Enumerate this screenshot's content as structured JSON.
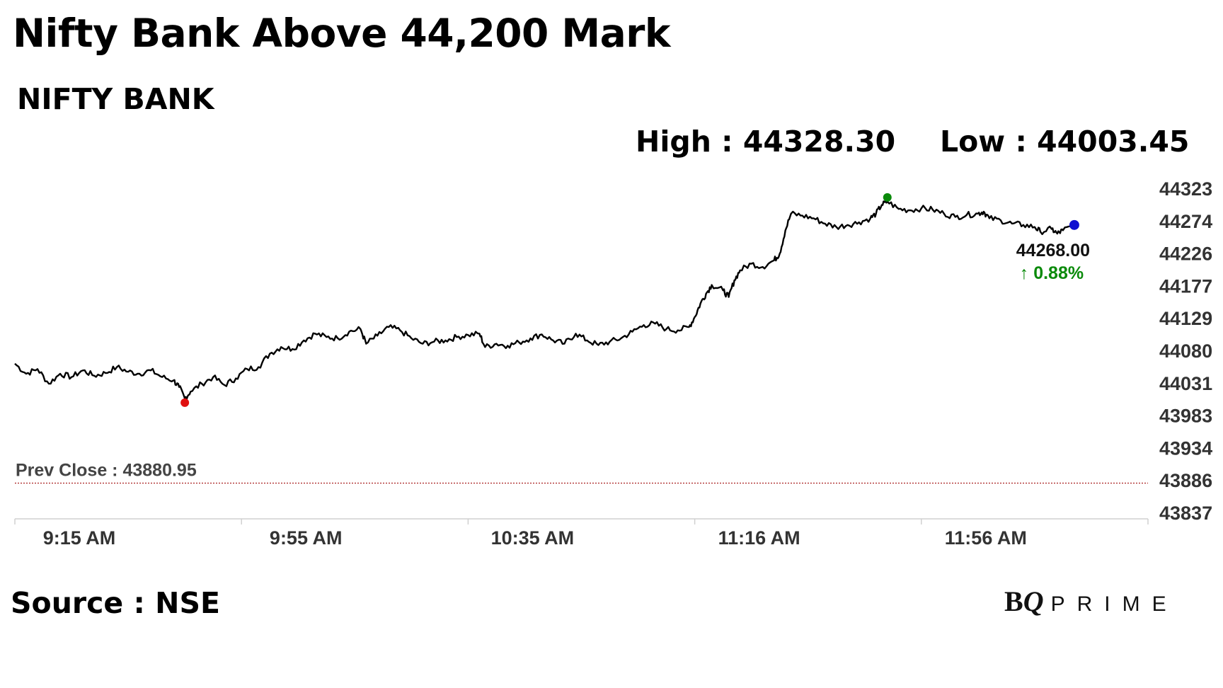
{
  "chart_data": {
    "type": "line",
    "title": "Nifty Bank Above 44,200 Mark",
    "subtitle": "NIFTY BANK",
    "high_label": "High : 44328.30",
    "low_label": "Low : 44003.45",
    "high": 44328.3,
    "low": 44003.45,
    "prev_close": 43880.95,
    "prev_close_label": "Prev Close : 43880.95",
    "last_value": 44268.0,
    "last_value_label": "44268.00",
    "change_label": "↑ 0.88%",
    "source": "Source : NSE",
    "y_ticks": [
      44323,
      44274,
      44226,
      44177,
      44129,
      44080,
      44031,
      43983,
      43934,
      43886,
      43837
    ],
    "ylim": [
      43837,
      44323
    ],
    "x_ticks": [
      "9:15 AM",
      "9:55 AM",
      "10:35 AM",
      "11:16 AM",
      "11:56 AM"
    ],
    "xlim_minutes": [
      555,
      755
    ],
    "x_tick_minutes": [
      555,
      595,
      635,
      676,
      716
    ],
    "series": [
      {
        "points": [
          [
            555,
            44060
          ],
          [
            557,
            44045
          ],
          [
            559,
            44052
          ],
          [
            561,
            44030
          ],
          [
            563,
            44045
          ],
          [
            565,
            44040
          ],
          [
            567,
            44050
          ],
          [
            569,
            44042
          ],
          [
            571,
            44046
          ],
          [
            573,
            44055
          ],
          [
            575,
            44048
          ],
          [
            577,
            44045
          ],
          [
            579,
            44050
          ],
          [
            581,
            44040
          ],
          [
            583,
            44035
          ],
          [
            584,
            44025
          ],
          [
            585,
            44008
          ],
          [
            586,
            44018
          ],
          [
            588,
            44030
          ],
          [
            590,
            44040
          ],
          [
            592,
            44028
          ],
          [
            594,
            44038
          ],
          [
            596,
            44052
          ],
          [
            598,
            44055
          ],
          [
            600,
            44075
          ],
          [
            602,
            44085
          ],
          [
            604,
            44082
          ],
          [
            606,
            44095
          ],
          [
            608,
            44105
          ],
          [
            610,
            44100
          ],
          [
            612,
            44098
          ],
          [
            614,
            44108
          ],
          [
            616,
            44112
          ],
          [
            617,
            44090
          ],
          [
            619,
            44102
          ],
          [
            621,
            44115
          ],
          [
            623,
            44110
          ],
          [
            625,
            44098
          ],
          [
            627,
            44090
          ],
          [
            629,
            44093
          ],
          [
            631,
            44095
          ],
          [
            633,
            44100
          ],
          [
            635,
            44103
          ],
          [
            637,
            44105
          ],
          [
            638,
            44085
          ],
          [
            640,
            44090
          ],
          [
            642,
            44087
          ],
          [
            644,
            44092
          ],
          [
            646,
            44098
          ],
          [
            648,
            44104
          ],
          [
            650,
            44095
          ],
          [
            652,
            44090
          ],
          [
            654,
            44105
          ],
          [
            656,
            44095
          ],
          [
            658,
            44088
          ],
          [
            660,
            44093
          ],
          [
            662,
            44098
          ],
          [
            664,
            44108
          ],
          [
            666,
            44118
          ],
          [
            668,
            44120
          ],
          [
            670,
            44112
          ],
          [
            672,
            44110
          ],
          [
            674,
            44115
          ],
          [
            675,
            44130
          ],
          [
            676,
            44150
          ],
          [
            677,
            44165
          ],
          [
            678,
            44178
          ],
          [
            680,
            44170
          ],
          [
            681,
            44160
          ],
          [
            682,
            44185
          ],
          [
            683,
            44200
          ],
          [
            685,
            44210
          ],
          [
            687,
            44205
          ],
          [
            689,
            44215
          ],
          [
            690,
            44225
          ],
          [
            691,
            44260
          ],
          [
            692,
            44285
          ],
          [
            694,
            44282
          ],
          [
            696,
            44278
          ],
          [
            698,
            44270
          ],
          [
            700,
            44265
          ],
          [
            702,
            44268
          ],
          [
            704,
            44272
          ],
          [
            706,
            44278
          ],
          [
            707,
            44285
          ],
          [
            708,
            44298
          ],
          [
            709,
            44303
          ],
          [
            711,
            44292
          ],
          [
            713,
            44290
          ],
          [
            715,
            44293
          ],
          [
            717,
            44291
          ],
          [
            719,
            44285
          ],
          [
            721,
            44280
          ],
          [
            723,
            44283
          ],
          [
            725,
            44285
          ],
          [
            726,
            44288
          ],
          [
            727,
            44278
          ],
          [
            729,
            44275
          ],
          [
            731,
            44270
          ],
          [
            733,
            44268
          ],
          [
            735,
            44265
          ],
          [
            736,
            44258
          ],
          [
            738,
            44262
          ],
          [
            739,
            44255
          ],
          [
            740,
            44260
          ],
          [
            742,
            44268
          ]
        ]
      }
    ]
  }
}
